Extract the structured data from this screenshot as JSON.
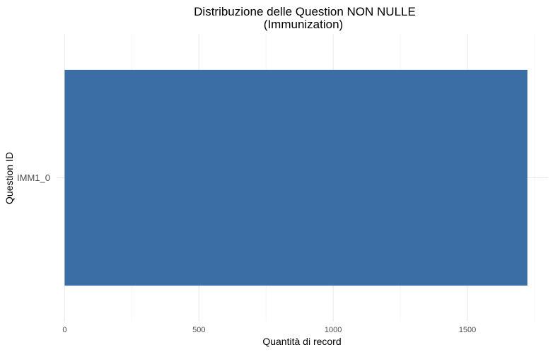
{
  "chart_data": {
    "type": "bar",
    "orientation": "horizontal",
    "title": "Distribuzione delle Question NON NULLE",
    "subtitle": "(Immunization)",
    "xlabel": "Quantità di record",
    "ylabel": "Question ID",
    "categories": [
      "IMM1_0"
    ],
    "values": [
      1723
    ],
    "xlim": [
      -30,
      1800
    ],
    "x_ticks": [
      0,
      500,
      1000,
      1500
    ],
    "x_tick_labels": [
      "0",
      "500",
      "1000",
      "1500"
    ],
    "grid": true,
    "bar_color": "#3a6ea5",
    "grid_major_color": "#ebebeb",
    "grid_minor_color": "#f4f4f4"
  }
}
